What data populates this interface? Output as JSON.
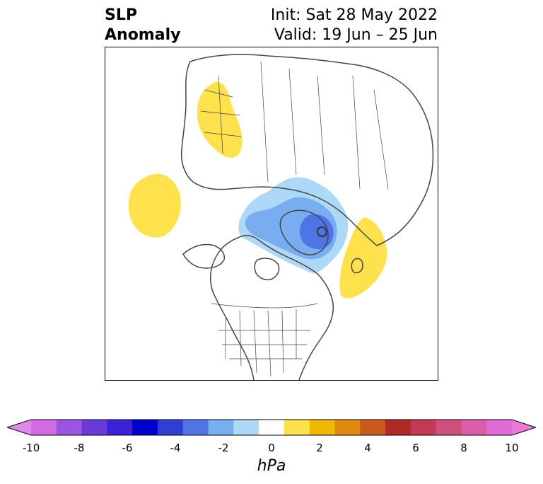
{
  "title": {
    "left_line1": "SLP",
    "left_line2": "Anomaly",
    "right_line1": "Init: Sat 28 May 2022",
    "right_line2": "Valid: 19 Jun – 25 Jun"
  },
  "colorbar": {
    "unit": "hPa",
    "tick_labels": [
      "-10",
      "-8",
      "-6",
      "-4",
      "-2",
      "0",
      "2",
      "4",
      "6",
      "8",
      "10"
    ],
    "boundaries": [
      -10,
      -9,
      -8,
      -7,
      -6,
      -5,
      -4,
      -3,
      -2,
      -1,
      1,
      2,
      3,
      4,
      5,
      6,
      7,
      8,
      9,
      10
    ],
    "colors": [
      "#d36be6",
      "#9b55e0",
      "#6a3bd9",
      "#3b22d6",
      "#0000cc",
      "#2f3fd6",
      "#4f74e6",
      "#78aef0",
      "#aed8f7",
      "#ffffff",
      "#ffe14d",
      "#f2b705",
      "#e08a12",
      "#c95a1a",
      "#b02a26",
      "#c43a55",
      "#d04f7e",
      "#d85fa8",
      "#e06bd6"
    ],
    "extend_min_color": "#e08ae8",
    "extend_max_color": "#e87ad8"
  },
  "map": {
    "projection": "north-polar-stereographic",
    "anomaly_features": [
      {
        "name": "positive-anomaly-europe",
        "level_hpa": 1.5,
        "color": "#ffe14d"
      },
      {
        "name": "positive-anomaly-north-pacific",
        "level_hpa": 1.5,
        "color": "#ffe14d"
      },
      {
        "name": "positive-anomaly-north-atlantic",
        "level_hpa": 1.5,
        "color": "#ffe14d"
      },
      {
        "name": "negative-anomaly-arctic-outer",
        "level_hpa": -1.5,
        "color": "#aed8f7"
      },
      {
        "name": "negative-anomaly-arctic-mid",
        "level_hpa": -2.5,
        "color": "#78aef0"
      },
      {
        "name": "negative-anomaly-arctic-core",
        "level_hpa": -3.5,
        "color": "#4f74e6"
      }
    ],
    "land_outline_color": "#444444"
  }
}
